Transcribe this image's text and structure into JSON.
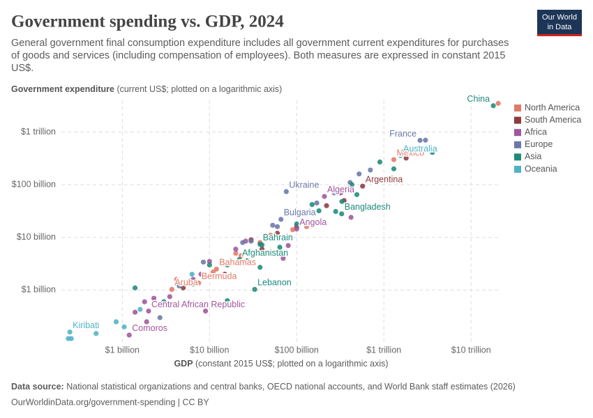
{
  "chart_data": {
    "type": "scatter",
    "title": "Government spending vs. GDP, 2024",
    "subtitle": [
      "General government final consumption expenditure includes all government current expenditures for purchases",
      "of goods and services (including compensation of employees). Both measures are expressed in constant 2015",
      "US$."
    ],
    "y_label": "Government expenditure",
    "y_label_detail": "(current US$; plotted on a logarithmic axis)",
    "x_label": "GDP",
    "x_label_detail": "(constant 2015 US$; plotted on a logarithmic axis)",
    "log_x": true,
    "log_y": true,
    "grid": true,
    "legend": "right",
    "xlim": [
      200000000,
      22000000000000
    ],
    "ylim": [
      100000000,
      4000000000000
    ],
    "xticks": [
      {
        "value": 1000000000,
        "label": "$1 billion"
      },
      {
        "value": 10000000000,
        "label": "$10 billion"
      },
      {
        "value": 100000000000,
        "label": "$100 billion"
      },
      {
        "value": 1000000000000,
        "label": "$1 trillion"
      },
      {
        "value": 10000000000000,
        "label": "$10 trillion"
      }
    ],
    "yticks": [
      {
        "value": 1000000000,
        "label": "$1 billion"
      },
      {
        "value": 10000000000,
        "label": "$10 billion"
      },
      {
        "value": 100000000000,
        "label": "$100 billion"
      },
      {
        "value": 1000000000000,
        "label": "$1 trillion"
      }
    ],
    "series": [
      {
        "name": "North America",
        "color": "#e07a66",
        "x": [
          20500000000000,
          1300000000000,
          12000000000,
          7500000000,
          3700000000,
          50000000000,
          38000000000,
          23000000000,
          11000000000,
          4200000000,
          2800000000,
          20000000000,
          90000000000,
          130000000000
        ],
        "values": [
          3500000000000,
          300000000000,
          2500000000,
          1360000000,
          1030000000,
          11000000000,
          8000000000,
          4500000000,
          2200000000,
          1600000000,
          550000000,
          5000000000,
          14000000000,
          16000000000
        ],
        "labels": [
          null,
          "Mexico",
          "Bahamas",
          "Bermuda",
          "Aruba",
          null,
          null,
          null,
          null,
          null,
          null,
          null,
          null,
          null
        ]
      },
      {
        "name": "South America",
        "color": "#8f3a3d",
        "x": [
          570000000000,
          1800000000000,
          400000000000,
          350000000000,
          220000000000,
          100000000000,
          60000000000,
          30000000000,
          40000000000,
          15000000000,
          5000000000
        ],
        "values": [
          94000000000,
          320000000000,
          80000000000,
          50000000000,
          40000000000,
          16000000000,
          12000000000,
          9000000000,
          6000000000,
          2000000000,
          1100000000
        ],
        "labels": [
          "Argentina",
          null,
          null,
          null,
          null,
          null,
          null,
          null,
          null,
          null,
          null
        ]
      },
      {
        "name": "Africa",
        "color": "#a2559c",
        "x": [
          208000000000,
          100000000000,
          2000000000,
          1200000000,
          420000000000,
          320000000000,
          130000000000,
          80000000000,
          70000000000,
          26000000000,
          20000000000,
          10000000000,
          8000000000,
          6500000000,
          1800000000,
          2300000000,
          1400000000,
          1900000000,
          9000000000,
          3500000000
        ],
        "values": [
          60000000000,
          14400000000,
          400000000,
          140000000,
          24000000000,
          70000000000,
          18000000000,
          7000000000,
          4000000000,
          8500000000,
          6000000000,
          3500000000,
          2000000000,
          1600000000,
          600000000,
          700000000,
          380000000,
          250000000,
          400000000,
          750000000
        ],
        "labels": [
          "Algeria",
          "Angola",
          "Central African Republic",
          "Comoros",
          null,
          null,
          null,
          null,
          null,
          null,
          null,
          null,
          null,
          null,
          null,
          null,
          null,
          null,
          null,
          null
        ]
      },
      {
        "name": "Europe",
        "color": "#6a78a8",
        "x": [
          2600000000000,
          76000000000,
          66000000000,
          3000000000000,
          2100000000000,
          1700000000000,
          700000000000,
          520000000000,
          410000000000,
          350000000000,
          270000000000,
          170000000000,
          90000000000,
          60000000000,
          53000000000,
          30000000000,
          24000000000,
          14000000000,
          8500000000,
          4500000000,
          2700000000
        ],
        "values": [
          695000000000,
          74000000000,
          22000000000,
          700000000000,
          430000000000,
          380000000000,
          190000000000,
          160000000000,
          110000000000,
          80000000000,
          70000000000,
          45000000000,
          28000000000,
          16000000000,
          17000000000,
          8500000000,
          8000000000,
          3300000000,
          3400000000,
          1200000000,
          300000000
        ],
        "labels": [
          "France",
          "Ukraine",
          "Bulgaria",
          null,
          null,
          null,
          null,
          null,
          null,
          null,
          null,
          null,
          null,
          null,
          null,
          null,
          null,
          null,
          null,
          null,
          null
        ]
      },
      {
        "name": "Asia",
        "color": "#1f8a7a",
        "x": [
          18000000000000,
          328000000000,
          38000000000,
          22000000000,
          33000000000,
          3600000000000,
          900000000000,
          1300000000000,
          490000000000,
          430000000000,
          330000000000,
          280000000000,
          150000000000,
          180000000000,
          100000000000,
          64000000000,
          40000000000,
          27000000000,
          16000000000,
          10000000000,
          38000000000,
          16000000000,
          6500000000,
          3000000000,
          1400000000
        ],
        "values": [
          3160000000000,
          28000000000,
          7400000000,
          3800000000,
          1030000000,
          410000000000,
          270000000000,
          200000000000,
          65000000000,
          100000000000,
          48000000000,
          31000000000,
          42000000000,
          32000000000,
          18000000000,
          6500000000,
          7200000000,
          3600000000,
          3000000000,
          3000000000,
          2700000000,
          630000000,
          1300000000,
          600000000,
          1100000000
        ],
        "labels": [
          "China",
          "Bangladesh",
          "Bahrain",
          "Afghanistan",
          "Lebanon",
          null,
          null,
          null,
          null,
          null,
          null,
          null,
          null,
          null,
          null,
          null,
          null,
          null,
          null,
          null,
          null,
          null,
          null,
          null,
          null
        ]
      },
      {
        "name": "Oceania",
        "color": "#4fb3c3",
        "x": [
          1550000000000,
          250000000,
          240000000,
          260000000,
          500000000,
          1050000000,
          850000000,
          1600000000,
          6300000000,
          5000000000
        ],
        "values": [
          357000000000,
          160000000,
          120000000,
          120000000,
          150000000,
          200000000,
          250000000,
          430000000,
          2000000000,
          1400000000
        ],
        "labels": [
          "Australia",
          "Kiribati",
          null,
          null,
          null,
          null,
          null,
          null,
          null,
          null
        ]
      }
    ]
  },
  "logo": [
    "Our World",
    "in Data"
  ],
  "footer": {
    "source_label": "Data source:",
    "source": "National statistical organizations and central banks, OECD national accounts, and World Bank staff estimates (2026)",
    "url": "OurWorldinData.org/government-spending | CC BY"
  }
}
